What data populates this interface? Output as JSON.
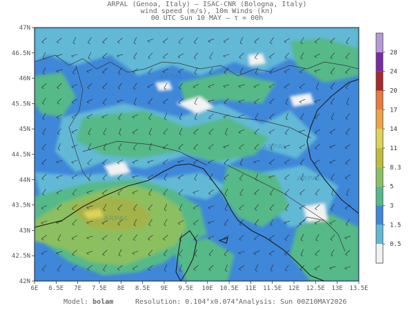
{
  "header": {
    "line1": "ARPAL (Genoa, Italy)  —  ISAC-CNR (Bologna, Italy)",
    "line2": "wind speed (m/s), 10m Winds (kn)",
    "line3": "00 UTC Sun 10 MAY  —  τ = 00h"
  },
  "map": {
    "lon_labels": [
      "6E",
      "6.5E",
      "7E",
      "7.5E",
      "8E",
      "8.5E",
      "9E",
      "9.5E",
      "10E",
      "10.5E",
      "11E",
      "11.5E",
      "12E",
      "12.5E",
      "13E",
      "13.5E"
    ],
    "lat_labels": [
      "47N",
      "46.5N",
      "46N",
      "45.5N",
      "45N",
      "44.5N",
      "44N",
      "43.5N",
      "43N",
      "42.5N",
      "42N"
    ],
    "watermark": "ARPAL"
  },
  "colorbar": {
    "labels": [
      "28",
      "24",
      "20",
      "17",
      "14",
      "11",
      "8.3",
      "5",
      "3",
      "1.5",
      "0.5"
    ],
    "colors": [
      "#f2f2f2",
      "#62b9d6",
      "#3f87d9",
      "#56b988",
      "#8cbf5f",
      "#bdbd3d",
      "#ded35a",
      "#f0a248",
      "#e67c3d",
      "#a32b2b",
      "#7b2aa2",
      "#b59ad7"
    ]
  },
  "footer": {
    "model_label": "Model:",
    "model_value": "bolam",
    "resolution_label": "Resolution:",
    "resolution_value": "0.104°x0.074°",
    "analysis_label": "Analysis:",
    "analysis_value": "Sun 00Z10MAY2026"
  }
}
